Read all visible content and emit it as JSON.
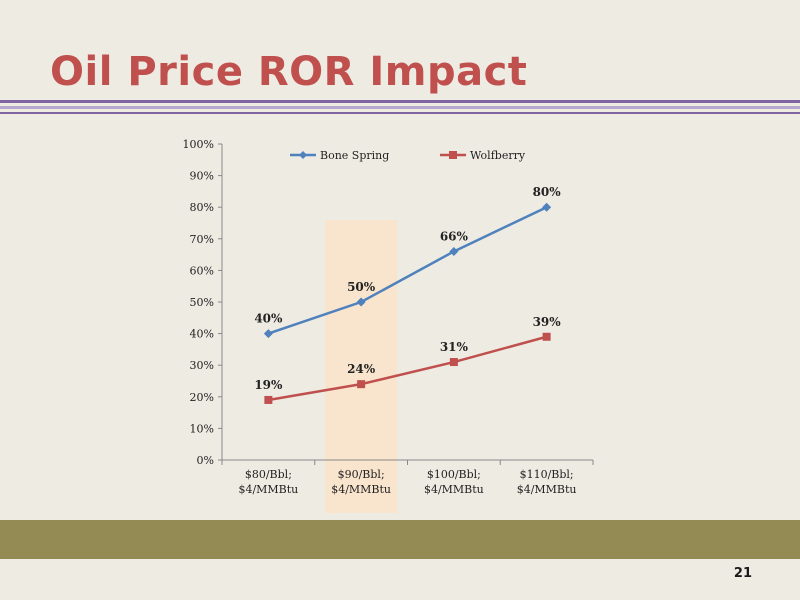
{
  "slide": {
    "title": "Oil Price ROR Impact",
    "page_number": "21"
  },
  "colors": {
    "background": "#eeebe3",
    "title": "#c0504d",
    "rule_dark": "#8064a2",
    "rule_light": "#b7a7cf",
    "footer_band": "#948a54",
    "highlight_band": "#fae3c9"
  },
  "chart_data": {
    "type": "line",
    "categories": [
      [
        "$80/Bbl;",
        "$4/MMBtu"
      ],
      [
        "$90/Bbl;",
        "$4/MMBtu"
      ],
      [
        "$100/Bbl;",
        "$4/MMBtu"
      ],
      [
        "$110/Bbl;",
        "$4/MMBtu"
      ]
    ],
    "series": [
      {
        "name": "Bone Spring",
        "color": "#4f81bd",
        "marker": "diamond",
        "values": [
          40,
          50,
          66,
          80
        ],
        "labels": [
          "40%",
          "50%",
          "66%",
          "80%"
        ]
      },
      {
        "name": "Wolfberry",
        "color": "#c0504d",
        "marker": "square",
        "values": [
          19,
          24,
          31,
          39
        ],
        "labels": [
          "19%",
          "24%",
          "31%",
          "39%"
        ]
      }
    ],
    "y_ticks": [
      "0%",
      "10%",
      "20%",
      "30%",
      "40%",
      "50%",
      "60%",
      "70%",
      "80%",
      "90%",
      "100%"
    ],
    "ylim": [
      0,
      100
    ],
    "highlighted_category": 1,
    "legend_position": "top",
    "grid": false
  }
}
